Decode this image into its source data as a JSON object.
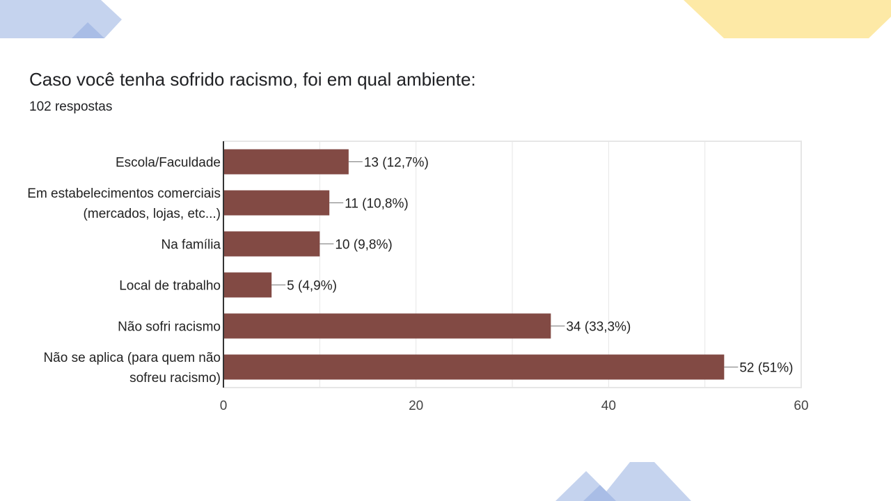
{
  "title": "Caso você tenha sofrido racismo, foi em qual ambiente:",
  "subtitle": "102 respostas",
  "colors": {
    "bar": "#824a44",
    "grid": "#e6e6e6",
    "axis": "#333333",
    "deco_blue": "#c5d3ee",
    "deco_blue_dark": "#a9bde6",
    "deco_yellow": "#fde9a6"
  },
  "chart_data": {
    "type": "bar",
    "orientation": "horizontal",
    "categories": [
      [
        "Escola/Faculdade"
      ],
      [
        "Em estabelecimentos comerciais",
        "(mercados, lojas, etc...)"
      ],
      [
        "Na família"
      ],
      [
        "Local de trabalho"
      ],
      [
        "Não sofri racismo"
      ],
      [
        "Não se aplica (para quem não",
        "sofreu racismo)"
      ]
    ],
    "values": [
      13,
      11,
      10,
      5,
      34,
      52
    ],
    "value_labels": [
      "13 (12,7%)",
      "11 (10,8%)",
      "10 (9,8%)",
      "5 (4,9%)",
      "34 (33,3%)",
      "52 (51%)"
    ],
    "xlim": [
      0,
      60
    ],
    "xticks": [
      0,
      20,
      40,
      60
    ],
    "xtick_labels": [
      "0",
      "20",
      "40",
      "60"
    ],
    "grid": true,
    "legend": "none"
  }
}
